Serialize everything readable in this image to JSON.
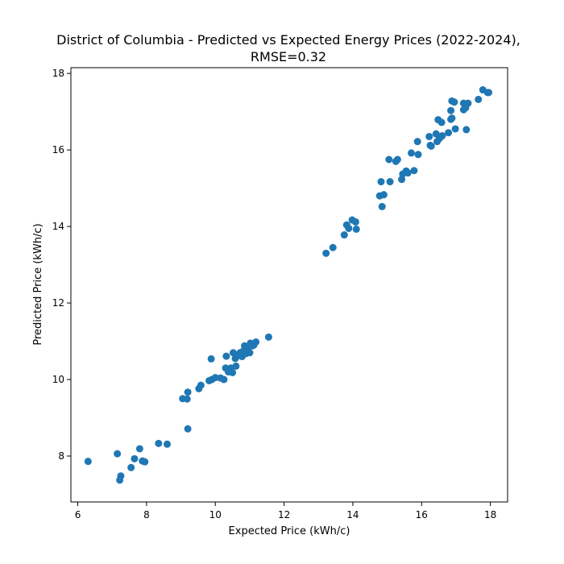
{
  "chart_data": {
    "type": "scatter",
    "title_line1": "District of Columbia - Predicted vs Expected Energy Prices (2022-2024),",
    "title_line2": "RMSE=0.32",
    "xlabel": "Expected Price (kWh/c)",
    "ylabel": "Predicted Price (kWh/c)",
    "xlim": [
      5.8,
      18.5
    ],
    "ylim": [
      6.8,
      18.15
    ],
    "xticks": [
      6,
      8,
      10,
      12,
      14,
      16,
      18
    ],
    "yticks": [
      8,
      10,
      12,
      14,
      16,
      18
    ],
    "marker_color": "#1f77b4",
    "points": [
      [
        6.3,
        7.86
      ],
      [
        7.15,
        8.06
      ],
      [
        7.22,
        7.37
      ],
      [
        7.25,
        7.48
      ],
      [
        7.55,
        7.7
      ],
      [
        7.65,
        7.93
      ],
      [
        7.8,
        8.19
      ],
      [
        7.88,
        7.87
      ],
      [
        7.95,
        7.85
      ],
      [
        8.35,
        8.33
      ],
      [
        8.6,
        8.31
      ],
      [
        9.05,
        9.5
      ],
      [
        9.18,
        9.49
      ],
      [
        9.2,
        9.67
      ],
      [
        9.2,
        8.71
      ],
      [
        9.52,
        9.76
      ],
      [
        9.58,
        9.85
      ],
      [
        9.82,
        9.97
      ],
      [
        9.88,
        10.54
      ],
      [
        9.9,
        10.0
      ],
      [
        10.0,
        10.05
      ],
      [
        10.15,
        10.04
      ],
      [
        10.25,
        10.0
      ],
      [
        10.3,
        10.3
      ],
      [
        10.32,
        10.61
      ],
      [
        10.38,
        10.2
      ],
      [
        10.45,
        10.3
      ],
      [
        10.5,
        10.18
      ],
      [
        10.52,
        10.7
      ],
      [
        10.58,
        10.55
      ],
      [
        10.6,
        10.35
      ],
      [
        10.65,
        10.62
      ],
      [
        10.72,
        10.7
      ],
      [
        10.78,
        10.6
      ],
      [
        10.82,
        10.75
      ],
      [
        10.85,
        10.88
      ],
      [
        10.9,
        10.68
      ],
      [
        10.95,
        10.82
      ],
      [
        11.0,
        10.7
      ],
      [
        11.02,
        10.95
      ],
      [
        11.08,
        10.88
      ],
      [
        11.12,
        10.9
      ],
      [
        11.18,
        10.98
      ],
      [
        11.55,
        11.11
      ],
      [
        13.22,
        13.3
      ],
      [
        13.42,
        13.45
      ],
      [
        13.75,
        13.78
      ],
      [
        13.82,
        14.04
      ],
      [
        13.88,
        13.95
      ],
      [
        13.98,
        14.17
      ],
      [
        14.08,
        14.12
      ],
      [
        14.1,
        13.93
      ],
      [
        14.78,
        14.8
      ],
      [
        14.82,
        15.17
      ],
      [
        14.85,
        14.52
      ],
      [
        14.9,
        14.83
      ],
      [
        15.05,
        15.75
      ],
      [
        15.08,
        15.17
      ],
      [
        15.25,
        15.7
      ],
      [
        15.3,
        15.75
      ],
      [
        15.42,
        15.23
      ],
      [
        15.45,
        15.37
      ],
      [
        15.55,
        15.45
      ],
      [
        15.6,
        15.4
      ],
      [
        15.7,
        15.92
      ],
      [
        15.78,
        15.46
      ],
      [
        15.88,
        16.22
      ],
      [
        15.9,
        15.88
      ],
      [
        16.22,
        16.35
      ],
      [
        16.25,
        16.12
      ],
      [
        16.28,
        16.1
      ],
      [
        16.42,
        16.42
      ],
      [
        16.45,
        16.22
      ],
      [
        16.48,
        16.79
      ],
      [
        16.52,
        16.3
      ],
      [
        16.58,
        16.72
      ],
      [
        16.6,
        16.37
      ],
      [
        16.78,
        16.45
      ],
      [
        16.85,
        17.03
      ],
      [
        16.85,
        16.8
      ],
      [
        16.88,
        17.28
      ],
      [
        16.88,
        16.83
      ],
      [
        16.95,
        17.25
      ],
      [
        16.98,
        16.55
      ],
      [
        17.22,
        17.05
      ],
      [
        17.22,
        17.22
      ],
      [
        17.28,
        17.1
      ],
      [
        17.3,
        16.53
      ],
      [
        17.35,
        17.22
      ],
      [
        17.65,
        17.32
      ],
      [
        17.78,
        17.57
      ],
      [
        17.92,
        17.5
      ],
      [
        17.95,
        17.5
      ]
    ]
  }
}
